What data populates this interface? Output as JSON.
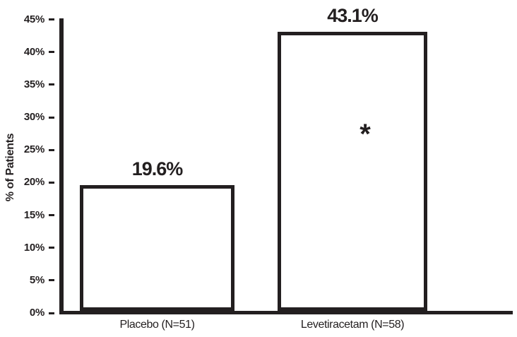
{
  "chart_data": {
    "type": "bar",
    "title": "",
    "xlabel": "",
    "ylabel": "% of Patients",
    "categories": [
      "Placebo (N=51)",
      "Levetiracetam (N=58)"
    ],
    "values": [
      19.6,
      43.1
    ],
    "value_labels": [
      "19.6%",
      "43.1%"
    ],
    "ylim": [
      0,
      45
    ],
    "yticks": [
      0,
      5,
      10,
      15,
      20,
      25,
      30,
      35,
      40,
      45
    ],
    "ytick_labels": [
      "0%",
      "5%",
      "10%",
      "15%",
      "20%",
      "25%",
      "30%",
      "35%",
      "40%",
      "45%"
    ],
    "grid": false,
    "legend": false,
    "bar_fill": "#ffffff",
    "bar_border": "#231f20",
    "axis_color": "#231f20",
    "text_color": "#231f20",
    "annotations": [
      {
        "text": "*",
        "bar_index": 1,
        "y_value": 28
      }
    ]
  }
}
